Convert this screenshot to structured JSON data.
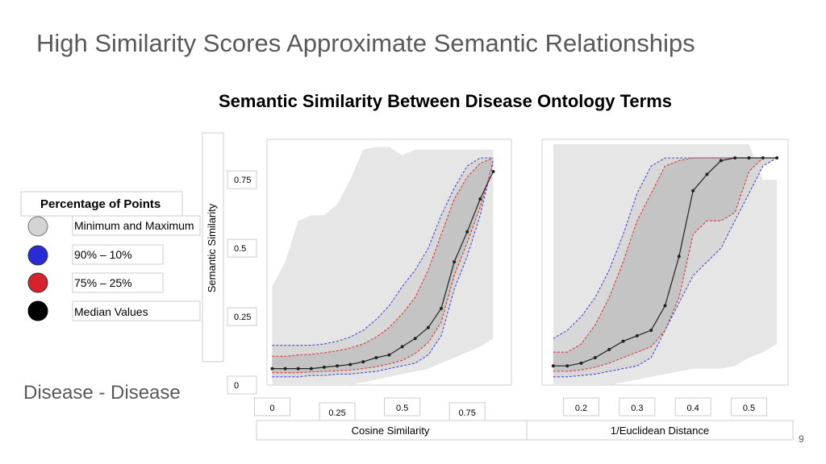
{
  "slide": {
    "title": "High Similarity Scores Approximate Semantic Relationships",
    "subtitle": "Disease - Disease",
    "page_number": "9"
  },
  "legend": {
    "title": "Percentage of Points",
    "entries": [
      {
        "label": "Minimum and Maximum",
        "color": "#d4d4d4"
      },
      {
        "label": "90% – 10%",
        "color": "#2b2bd6"
      },
      {
        "label": "75% – 25%",
        "color": "#d6222d"
      },
      {
        "label": "Median Values",
        "color": "#000000"
      }
    ]
  },
  "chart_data": {
    "type": "area",
    "title": "Semantic Similarity Between Disease Ontology Terms",
    "ylabel": "Semantic Similarity",
    "ylim": [
      0,
      0.88
    ],
    "yticks": [
      0,
      0.25,
      0.5,
      0.75
    ],
    "ytick_labels": [
      "0",
      "0.25",
      "0.5",
      "0.75"
    ],
    "colors": {
      "minmax": "#e6e6e6",
      "iqr": "#c4c4c4",
      "p90_line": "#4a4ad8",
      "p75_line": "#d83a3a",
      "median": "#222222"
    },
    "panels": [
      {
        "xlabel": "Cosine Similarity",
        "xlim": [
          -0.02,
          0.92
        ],
        "xticks": [
          0,
          0.25,
          0.5,
          0.75
        ],
        "xtick_labels": [
          "0",
          "0.25",
          "0.5",
          "0.75"
        ],
        "x": [
          0,
          0.05,
          0.1,
          0.15,
          0.2,
          0.25,
          0.3,
          0.35,
          0.4,
          0.45,
          0.5,
          0.55,
          0.6,
          0.65,
          0.7,
          0.75,
          0.8,
          0.85
        ],
        "median": [
          0.06,
          0.06,
          0.06,
          0.06,
          0.065,
          0.07,
          0.075,
          0.085,
          0.1,
          0.11,
          0.14,
          0.17,
          0.21,
          0.28,
          0.45,
          0.56,
          0.68,
          0.78
        ],
        "p10": [
          0.03,
          0.03,
          0.03,
          0.035,
          0.035,
          0.04,
          0.04,
          0.045,
          0.05,
          0.06,
          0.07,
          0.08,
          0.11,
          0.18,
          0.35,
          0.47,
          0.62,
          0.82
        ],
        "p90": [
          0.145,
          0.145,
          0.145,
          0.145,
          0.15,
          0.16,
          0.175,
          0.2,
          0.24,
          0.29,
          0.36,
          0.42,
          0.5,
          0.62,
          0.72,
          0.8,
          0.83,
          0.83
        ],
        "p25": [
          0.045,
          0.045,
          0.045,
          0.048,
          0.05,
          0.052,
          0.055,
          0.06,
          0.067,
          0.077,
          0.09,
          0.115,
          0.155,
          0.23,
          0.4,
          0.52,
          0.65,
          0.81
        ],
        "p75": [
          0.105,
          0.105,
          0.11,
          0.112,
          0.118,
          0.125,
          0.135,
          0.15,
          0.175,
          0.21,
          0.26,
          0.32,
          0.42,
          0.55,
          0.68,
          0.76,
          0.81,
          0.83
        ],
        "min": [
          0.0,
          0.0,
          0.0,
          0.0,
          0.0,
          0.0,
          0.0,
          0.01,
          0.02,
          0.03,
          0.04,
          0.05,
          0.06,
          0.08,
          0.1,
          0.12,
          0.14,
          0.17
        ],
        "max": [
          0.36,
          0.45,
          0.6,
          0.62,
          0.62,
          0.66,
          0.75,
          0.86,
          0.87,
          0.87,
          0.84,
          0.86,
          0.86,
          0.86,
          0.86,
          0.86,
          0.86,
          0.86
        ]
      },
      {
        "xlabel": "1/Euclidean Distance",
        "xlim": [
          0.13,
          0.57
        ],
        "xticks": [
          0.2,
          0.3,
          0.4,
          0.5
        ],
        "xtick_labels": [
          "0.2",
          "0.3",
          "0.4",
          "0.5"
        ],
        "x": [
          0.15,
          0.175,
          0.2,
          0.225,
          0.25,
          0.275,
          0.3,
          0.325,
          0.35,
          0.375,
          0.4,
          0.425,
          0.45,
          0.475,
          0.5,
          0.525,
          0.55
        ],
        "median": [
          0.07,
          0.07,
          0.08,
          0.1,
          0.13,
          0.16,
          0.18,
          0.2,
          0.29,
          0.47,
          0.71,
          0.77,
          0.82,
          0.83,
          0.83,
          0.83,
          0.83
        ],
        "p10": [
          0.03,
          0.03,
          0.035,
          0.04,
          0.05,
          0.06,
          0.07,
          0.1,
          0.2,
          0.3,
          0.4,
          0.45,
          0.5,
          0.6,
          0.7,
          0.8,
          0.83
        ],
        "p90": [
          0.17,
          0.2,
          0.25,
          0.32,
          0.42,
          0.55,
          0.7,
          0.8,
          0.83,
          0.83,
          0.83,
          0.83,
          0.83,
          0.83,
          0.83,
          0.83,
          0.83
        ],
        "p25": [
          0.05,
          0.05,
          0.055,
          0.065,
          0.08,
          0.1,
          0.12,
          0.14,
          0.2,
          0.32,
          0.55,
          0.6,
          0.6,
          0.63,
          0.78,
          0.83,
          0.83
        ],
        "p75": [
          0.12,
          0.12,
          0.15,
          0.22,
          0.32,
          0.45,
          0.6,
          0.7,
          0.8,
          0.82,
          0.83,
          0.83,
          0.83,
          0.83,
          0.83,
          0.83,
          0.83
        ],
        "min": [
          0.0,
          0.0,
          0.0,
          0.0,
          0.0,
          0.01,
          0.02,
          0.03,
          0.04,
          0.05,
          0.06,
          0.06,
          0.06,
          0.07,
          0.1,
          0.12,
          0.15
        ],
        "max": [
          0.88,
          0.88,
          0.88,
          0.88,
          0.88,
          0.88,
          0.88,
          0.88,
          0.88,
          0.88,
          0.88,
          0.88,
          0.88,
          0.88,
          0.88,
          0.75,
          0.75
        ]
      }
    ]
  }
}
